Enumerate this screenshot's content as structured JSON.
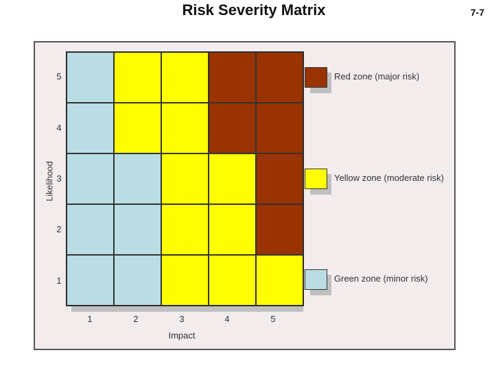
{
  "header": {
    "title": "Risk Severity Matrix",
    "slide_number": "7-7"
  },
  "colors": {
    "green": "#b9dde2",
    "yellow": "#ffff00",
    "red": "#993300"
  },
  "chart_data": {
    "type": "heatmap",
    "title": "Risk Severity Matrix",
    "xlabel": "Impact",
    "ylabel": "Likelihood",
    "x": [
      "1",
      "2",
      "3",
      "4",
      "5"
    ],
    "y": [
      "5",
      "4",
      "3",
      "2",
      "1"
    ],
    "values": [
      [
        "green",
        "yellow",
        "yellow",
        "red",
        "red"
      ],
      [
        "green",
        "yellow",
        "yellow",
        "red",
        "red"
      ],
      [
        "green",
        "green",
        "yellow",
        "yellow",
        "red"
      ],
      [
        "green",
        "green",
        "yellow",
        "yellow",
        "red"
      ],
      [
        "green",
        "green",
        "yellow",
        "yellow",
        "yellow"
      ]
    ],
    "legend": [
      {
        "zone": "red",
        "label": "Red zone (major risk)"
      },
      {
        "zone": "yellow",
        "label": "Yellow zone (moderate risk)"
      },
      {
        "zone": "green",
        "label": "Green zone (minor risk)"
      }
    ],
    "grid": true
  }
}
